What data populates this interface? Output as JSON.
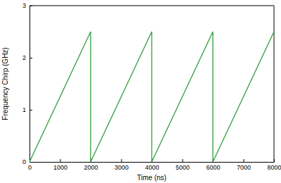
{
  "chart_data": {
    "type": "line",
    "x_label": "Time (ns)",
    "y_label": "Frequency Chirp (GHz)",
    "x": [
      0,
      2000,
      2000,
      4000,
      4000,
      6000,
      6000,
      8000
    ],
    "values": [
      0,
      2.5,
      0,
      2.5,
      0,
      2.5,
      0,
      2.5
    ],
    "color": "#2e9e3e",
    "xlim": [
      0,
      8000
    ],
    "xticks": [
      0,
      1000,
      2000,
      3000,
      4000,
      5000,
      6000,
      7000,
      8000
    ],
    "ylim": [
      0,
      3
    ],
    "yticks": [
      0,
      1,
      2,
      3
    ],
    "grid": false
  }
}
